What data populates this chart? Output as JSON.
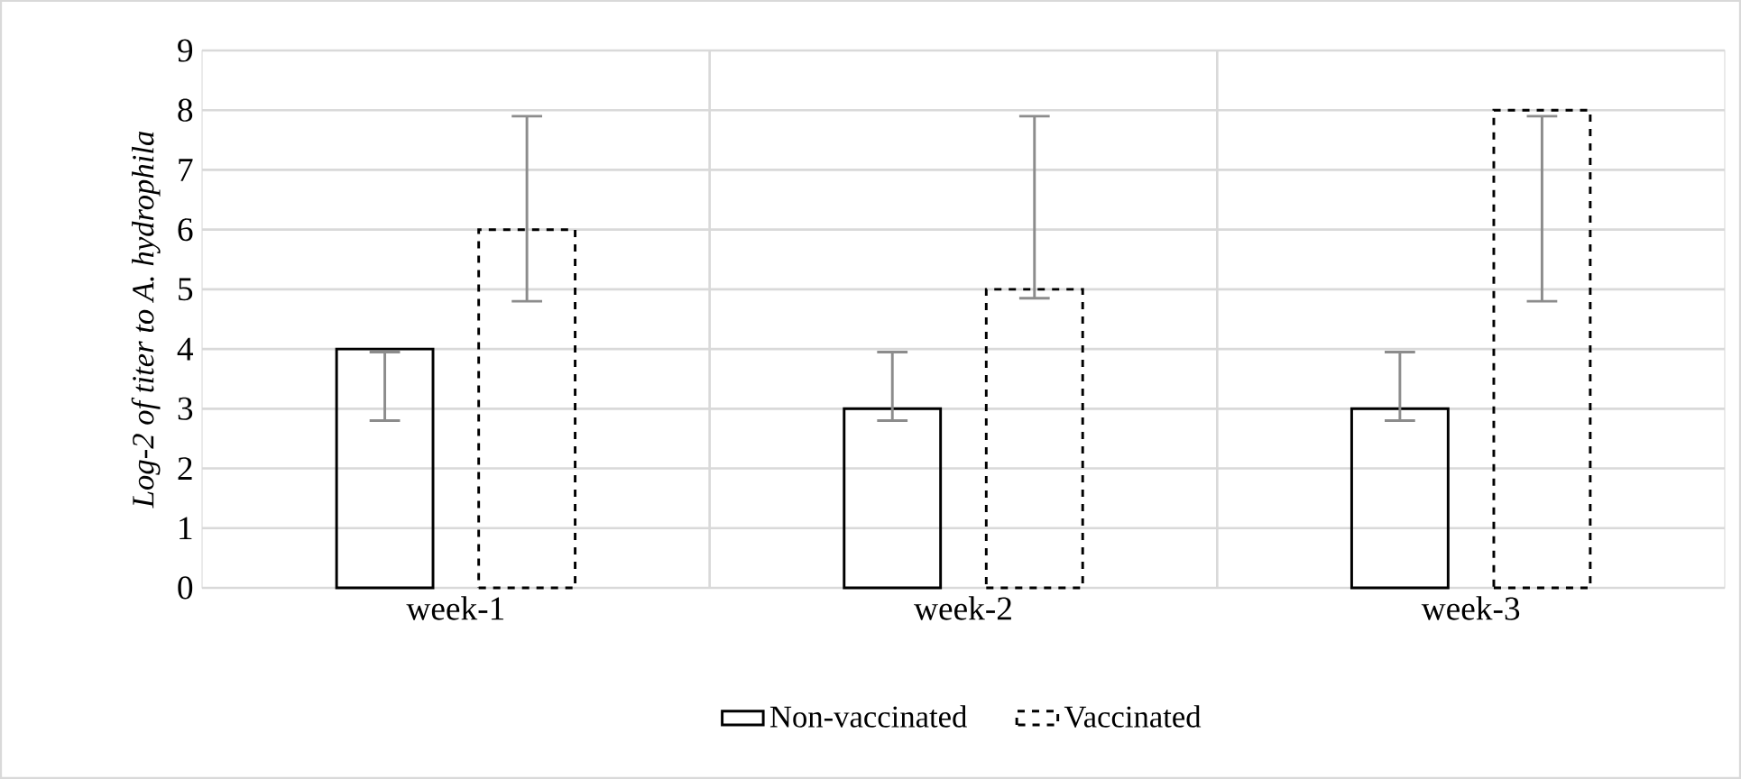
{
  "chart_data": {
    "type": "bar",
    "ylabel": "Log-2 of titer to A. hydrophila",
    "categories": [
      "week-1",
      "week-2",
      "week-3"
    ],
    "series": [
      {
        "name": "Non-vaccinated",
        "color": "#000000",
        "line_style": "solid",
        "values": [
          4,
          3,
          3
        ],
        "errors": [
          [
            2.8,
            3.95
          ],
          [
            2.8,
            3.95
          ],
          [
            2.8,
            3.95
          ]
        ]
      },
      {
        "name": "Vaccinated",
        "color": "#000000",
        "line_style": "dashed",
        "values": [
          6,
          5,
          8
        ],
        "errors": [
          [
            4.8,
            7.9
          ],
          [
            4.85,
            7.9
          ],
          [
            4.8,
            7.9
          ]
        ]
      }
    ],
    "ylim": [
      0,
      9
    ],
    "yticks": [
      0,
      1,
      2,
      3,
      4,
      5,
      6,
      7,
      8,
      9
    ],
    "grid": true,
    "legend": "bottom"
  }
}
